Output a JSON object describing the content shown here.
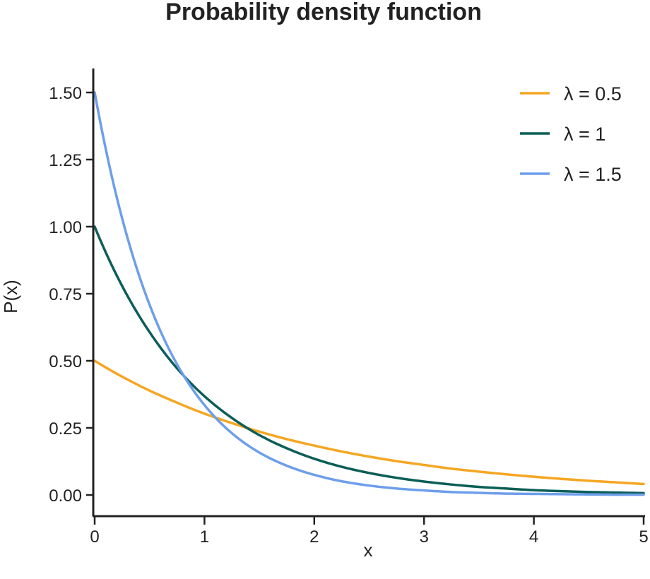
{
  "chart_data": {
    "type": "line",
    "title": "Probability density function",
    "xlabel": "x",
    "ylabel": "P(x)",
    "xlim": [
      0,
      5
    ],
    "ylim": [
      0,
      1.55
    ],
    "xticks": [
      0,
      1,
      2,
      3,
      4,
      5
    ],
    "xtick_labels": [
      "0",
      "1",
      "2",
      "3",
      "4",
      "5"
    ],
    "yticks": [
      0,
      0.25,
      0.5,
      0.75,
      1.0,
      1.25,
      1.5
    ],
    "ytick_labels": [
      "0.00",
      "0.25",
      "0.50",
      "0.75",
      "1.00",
      "1.25",
      "1.50"
    ],
    "grid": false,
    "legend_position": "top-right",
    "x": [
      0,
      0.25,
      0.5,
      0.75,
      1,
      1.25,
      1.5,
      1.75,
      2,
      2.25,
      2.5,
      2.75,
      3,
      3.25,
      3.5,
      3.75,
      4,
      4.25,
      4.5,
      4.75,
      5
    ],
    "series": [
      {
        "name": "λ = 0.5",
        "color": "#f5a623",
        "values": [
          0.5,
          0.441,
          0.389,
          0.344,
          0.303,
          0.268,
          0.236,
          0.208,
          0.184,
          0.162,
          0.143,
          0.126,
          0.112,
          0.098,
          0.087,
          0.077,
          0.068,
          0.06,
          0.053,
          0.047,
          0.041
        ]
      },
      {
        "name": "λ = 1",
        "color": "#0b5e57",
        "values": [
          1.0,
          0.779,
          0.607,
          0.472,
          0.368,
          0.287,
          0.223,
          0.174,
          0.135,
          0.105,
          0.082,
          0.064,
          0.05,
          0.039,
          0.03,
          0.024,
          0.018,
          0.014,
          0.011,
          0.009,
          0.007
        ]
      },
      {
        "name": "λ = 1.5",
        "color": "#6d9eeb",
        "values": [
          1.5,
          1.031,
          0.709,
          0.487,
          0.335,
          0.23,
          0.158,
          0.109,
          0.075,
          0.051,
          0.035,
          0.024,
          0.017,
          0.011,
          0.008,
          0.005,
          0.004,
          0.003,
          0.002,
          0.001,
          0.001
        ]
      }
    ]
  }
}
